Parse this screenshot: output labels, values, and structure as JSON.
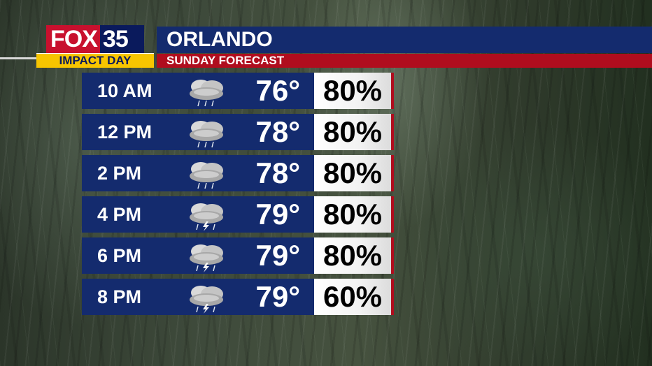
{
  "branding": {
    "logo_fox": "FOX",
    "logo_num": "35",
    "tag": "IMPACT DAY"
  },
  "header": {
    "title": "ORLANDO",
    "subtitle": "SUNDAY FORECAST"
  },
  "forecast": [
    {
      "time": "10 AM",
      "temp": "76°",
      "precip": "80%",
      "icon": "rain-cloud-icon"
    },
    {
      "time": "12 PM",
      "temp": "78°",
      "precip": "80%",
      "icon": "rain-cloud-icon"
    },
    {
      "time": "2 PM",
      "temp": "78°",
      "precip": "80%",
      "icon": "rain-cloud-icon"
    },
    {
      "time": "4 PM",
      "temp": "79°",
      "precip": "80%",
      "icon": "thunderstorm-icon"
    },
    {
      "time": "6 PM",
      "temp": "79°",
      "precip": "80%",
      "icon": "thunderstorm-icon"
    },
    {
      "time": "8 PM",
      "temp": "79°",
      "precip": "60%",
      "icon": "thunderstorm-icon"
    }
  ],
  "colors": {
    "navy": "#142b6e",
    "red": "#b00d1e",
    "yellow": "#f7c500"
  }
}
